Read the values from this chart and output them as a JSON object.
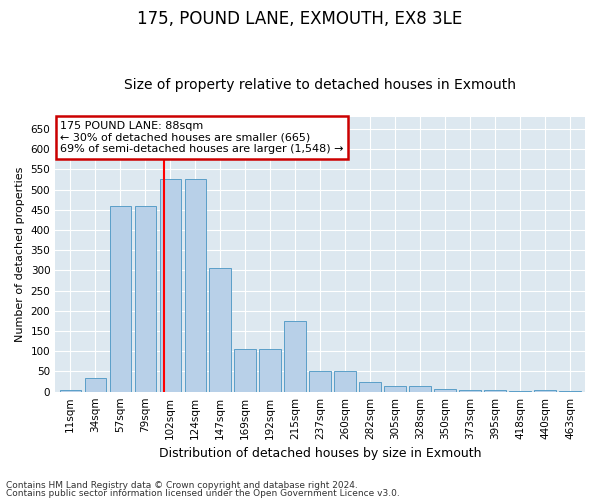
{
  "title": "175, POUND LANE, EXMOUTH, EX8 3LE",
  "subtitle": "Size of property relative to detached houses in Exmouth",
  "xlabel": "Distribution of detached houses by size in Exmouth",
  "ylabel": "Number of detached properties",
  "categories": [
    "11sqm",
    "34sqm",
    "57sqm",
    "79sqm",
    "102sqm",
    "124sqm",
    "147sqm",
    "169sqm",
    "192sqm",
    "215sqm",
    "237sqm",
    "260sqm",
    "282sqm",
    "305sqm",
    "328sqm",
    "350sqm",
    "373sqm",
    "395sqm",
    "418sqm",
    "440sqm",
    "463sqm"
  ],
  "values": [
    5,
    35,
    460,
    460,
    525,
    525,
    305,
    105,
    105,
    175,
    50,
    50,
    25,
    15,
    15,
    7,
    5,
    5,
    2,
    5,
    2
  ],
  "bar_color": "#b8d0e8",
  "bar_edge_color": "#5a9fc8",
  "background_color": "#ffffff",
  "plot_bg_color": "#dde8f0",
  "red_line_x": 3.75,
  "annotation_text": "175 POUND LANE: 88sqm\n← 30% of detached houses are smaller (665)\n69% of semi-detached houses are larger (1,548) →",
  "annotation_box_facecolor": "#ffffff",
  "annotation_box_edgecolor": "#cc0000",
  "ylim": [
    0,
    680
  ],
  "yticks": [
    0,
    50,
    100,
    150,
    200,
    250,
    300,
    350,
    400,
    450,
    500,
    550,
    600,
    650
  ],
  "footer_line1": "Contains HM Land Registry data © Crown copyright and database right 2024.",
  "footer_line2": "Contains public sector information licensed under the Open Government Licence v3.0.",
  "title_fontsize": 12,
  "subtitle_fontsize": 10,
  "xlabel_fontsize": 9,
  "ylabel_fontsize": 8,
  "tick_fontsize": 7.5,
  "annotation_fontsize": 8,
  "footer_fontsize": 6.5
}
